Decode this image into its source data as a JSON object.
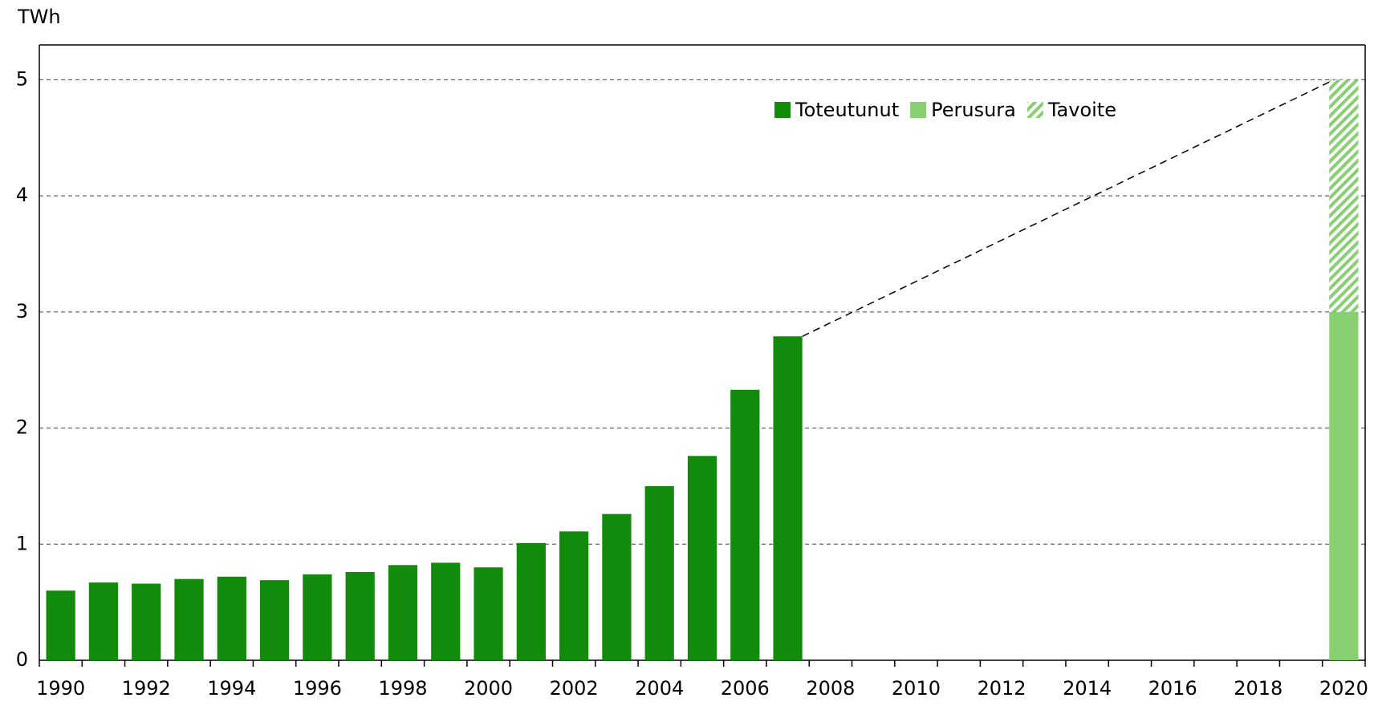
{
  "chart_data": {
    "type": "bar",
    "stacked": true,
    "y_label": "TWh",
    "categories": [
      "1990",
      null,
      "1992",
      null,
      "1994",
      null,
      "1996",
      null,
      "1998",
      null,
      "2000",
      null,
      "2002",
      null,
      "2004",
      null,
      "2006",
      null,
      "2008",
      null,
      "2010",
      null,
      "2012",
      null,
      "2014",
      null,
      "2016",
      null,
      "2018",
      null,
      "2020"
    ],
    "series": [
      {
        "name": "Toteutunut",
        "color": "#128a0c",
        "values": [
          0.6,
          0.67,
          0.66,
          0.7,
          0.72,
          0.69,
          0.74,
          0.76,
          0.82,
          0.84,
          0.8,
          1.01,
          1.11,
          1.26,
          1.5,
          1.76,
          2.33,
          2.79,
          null,
          null,
          null,
          null,
          null,
          null,
          null,
          null,
          null,
          null,
          null,
          null,
          null
        ]
      },
      {
        "name": "Perusura",
        "color": "#88cf72",
        "values": [
          null,
          null,
          null,
          null,
          null,
          null,
          null,
          null,
          null,
          null,
          null,
          null,
          null,
          null,
          null,
          null,
          null,
          null,
          null,
          null,
          null,
          null,
          null,
          null,
          null,
          null,
          null,
          null,
          null,
          null,
          3
        ]
      },
      {
        "name": "Tavoite",
        "color": "#88cf72",
        "hatch": true,
        "values": [
          null,
          null,
          null,
          null,
          null,
          null,
          null,
          null,
          null,
          null,
          null,
          null,
          null,
          null,
          null,
          null,
          null,
          null,
          null,
          null,
          null,
          null,
          null,
          null,
          null,
          null,
          null,
          null,
          null,
          null,
          2
        ]
      }
    ],
    "ylim": [
      0,
      5.3
    ],
    "yticks": [
      0,
      1,
      2,
      3,
      4,
      5
    ],
    "grid": true,
    "legend": "top-right"
  }
}
